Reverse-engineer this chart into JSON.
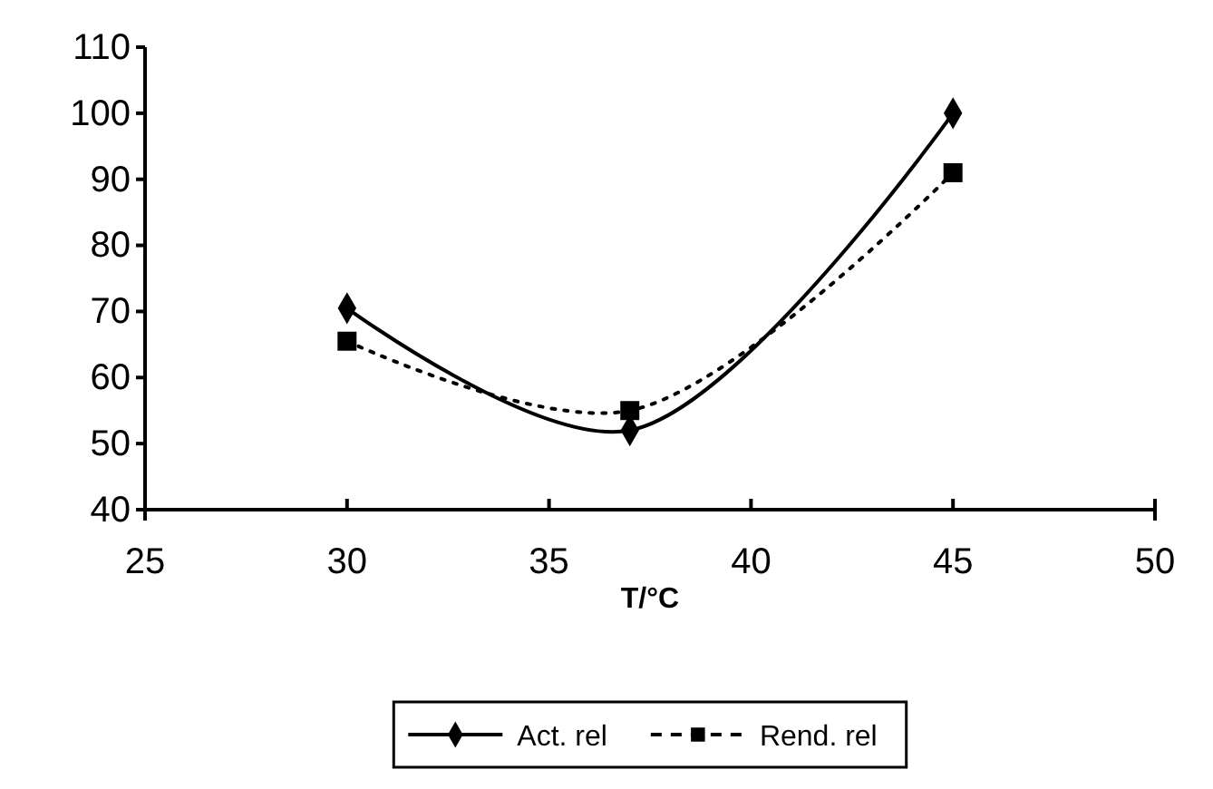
{
  "chart_data": {
    "type": "line",
    "xlabel": "T/°C",
    "x": [
      30,
      37,
      45
    ],
    "xlim": [
      25,
      50
    ],
    "xticks": [
      25,
      30,
      35,
      40,
      45,
      50
    ],
    "ylim": [
      40,
      110
    ],
    "yticks": [
      40,
      50,
      60,
      70,
      80,
      90,
      100,
      110
    ],
    "grid": false,
    "legend": "bottom",
    "series": [
      {
        "name": "Act. rel",
        "color": "#000000",
        "values": [
          70.5,
          52,
          100
        ],
        "marker": "diamond",
        "line_style": "solid"
      },
      {
        "name": "Rend. rel",
        "color": "#000000",
        "values": [
          65.5,
          55,
          91
        ],
        "marker": "square",
        "line_style": "dotted"
      }
    ]
  }
}
